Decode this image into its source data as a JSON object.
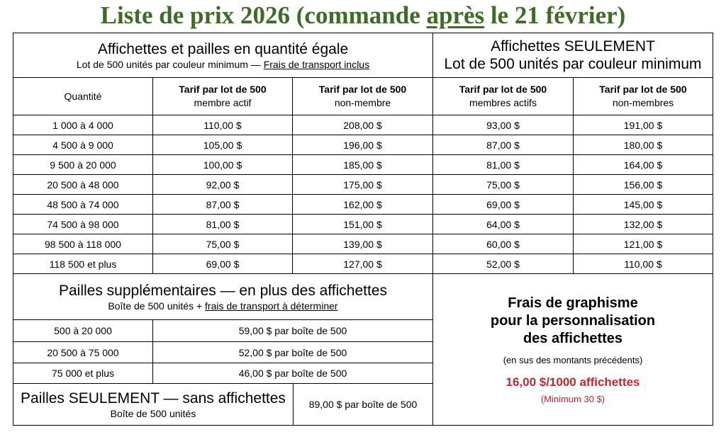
{
  "title": {
    "part1": "Liste de prix 2026 (commande ",
    "underlined": "après",
    "part2": " le 21 février)"
  },
  "section_equal": {
    "heading": "Affichettes et pailles en quantité égale",
    "sub_prefix": "Lot de 500 unités par couleur minimum — ",
    "sub_underlined": "Frais de transport inclus"
  },
  "section_only": {
    "heading_line1": "Affichettes SEULEMENT",
    "heading_line2": "Lot de 500 unités par couleur minimum"
  },
  "columns": {
    "quantity": "Quantité",
    "c1_bold": "Tarif par lot de 500",
    "c1_sub": "membre actif",
    "c2_bold": "Tarif par lot de 500",
    "c2_sub": "non-membre",
    "c3_bold": "Tarif par lot de 500",
    "c3_sub": "membres actifs",
    "c4_bold": "Tarif par lot de 500",
    "c4_sub": "non-membres"
  },
  "rows": [
    {
      "qty": "1 000 à 4 000",
      "m1": "110,00 $",
      "n1": "208,00 $",
      "m2": "93,00 $",
      "n2": "191,00 $"
    },
    {
      "qty": "4 500 à 9 000",
      "m1": "105,00 $",
      "n1": "196,00 $",
      "m2": "87,00 $",
      "n2": "180,00 $"
    },
    {
      "qty": "9 500 à 20 000",
      "m1": "100,00 $",
      "n1": "185,00 $",
      "m2": "81,00 $",
      "n2": "164,00 $"
    },
    {
      "qty": "20 500 à 48 000",
      "m1": "92,00 $",
      "n1": "175,00 $",
      "m2": "75,00 $",
      "n2": "156,00 $"
    },
    {
      "qty": "48 500 à 74 000",
      "m1": "87,00 $",
      "n1": "162,00 $",
      "m2": "69,00 $",
      "n2": "145,00 $"
    },
    {
      "qty": "74 500 à 98 000",
      "m1": "81,00 $",
      "n1": "151,00 $",
      "m2": "64,00 $",
      "n2": "132,00 $"
    },
    {
      "qty": "98 500 à 118 000",
      "m1": "75,00 $",
      "n1": "139,00 $",
      "m2": "60,00 $",
      "n2": "121,00 $"
    },
    {
      "qty": "118 500 et plus",
      "m1": "69,00 $",
      "n1": "127,00 $",
      "m2": "52,00 $",
      "n2": "110,00 $"
    }
  ],
  "extra_straws": {
    "heading": "Pailles supplémentaires — en plus des affichettes",
    "sub_prefix": "Boîte de 500 unités + ",
    "sub_underlined": "frais de transport à déterminer",
    "rows": [
      {
        "qty": "500 à 20 000",
        "price": "59,00 $ par boîte de 500"
      },
      {
        "qty": "20 500 à 75 000",
        "price": "52,00 $ par boîte de 500"
      },
      {
        "qty": "75 000 et plus",
        "price": "46,00 $ par boîte de 500"
      }
    ]
  },
  "straws_only": {
    "heading": "Pailles SEULEMENT — sans affichettes",
    "sub": "Boîte de 500 unités",
    "price": "89,00 $ par boîte de 500"
  },
  "graphics": {
    "line1": "Frais de graphisme",
    "line2": "pour la personnalisation",
    "line3": "des affichettes",
    "note": "(en sus des montants précédents)",
    "price": "16,00 $/1000 affichettes",
    "minimum": "(Minimum 30 $)"
  },
  "colors": {
    "title_green": "#3e6b25",
    "accent_red": "#c0282d"
  }
}
